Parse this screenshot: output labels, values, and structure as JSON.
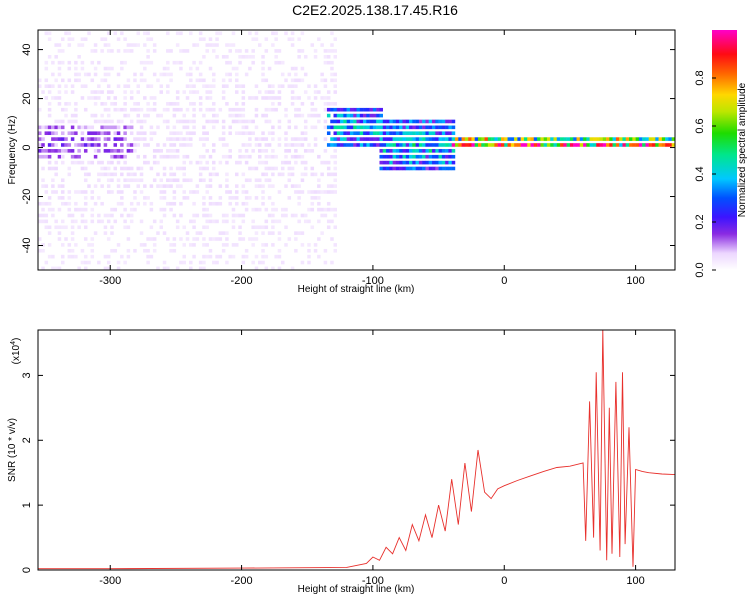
{
  "title": "C2E2.2025.138.17.45.R16",
  "chart_data": [
    {
      "type": "heatmap",
      "xlabel": "Height of straight line (km)",
      "ylabel": "Frequency (Hz)",
      "xlim": [
        -355,
        130
      ],
      "ylim": [
        -50,
        48
      ],
      "xticks": [
        -300,
        -200,
        -100,
        0,
        100
      ],
      "yticks": [
        -40,
        -20,
        0,
        20,
        40
      ],
      "colorbar": {
        "label": "Normalized spectral amplitude",
        "range": [
          0.0,
          1.0
        ],
        "ticks": [
          0.0,
          0.2,
          0.4,
          0.6,
          0.8
        ],
        "tick_labels": [
          "0.0",
          "0.2",
          "0.4",
          "0.6",
          "0.8"
        ],
        "colormap": "rainbow (white, violet, blue, cyan, green, yellow, orange, red, magenta)"
      },
      "regions": [
        {
          "x_range": [
            -355,
            -130
          ],
          "freq_range": [
            -50,
            48
          ],
          "amplitude": 0.05,
          "description": "broadband noise"
        },
        {
          "x_range": [
            -355,
            -285
          ],
          "freq_range": [
            -5,
            8
          ],
          "amplitude": 0.15
        },
        {
          "x_range": [
            -135,
            -95
          ],
          "freq_range": [
            0,
            15
          ],
          "amplitude": 0.4
        },
        {
          "x_range": [
            -95,
            -40
          ],
          "freq_range": [
            -10,
            10
          ],
          "amplitude": 0.4
        },
        {
          "x_range": [
            -40,
            130
          ],
          "freq_range": [
            -2,
            3
          ],
          "amplitude": 0.85,
          "description": "narrow line near 0 Hz"
        }
      ],
      "grid": false,
      "legend": "none"
    },
    {
      "type": "line",
      "xlabel": "Height of straight line (km)",
      "ylabel": "SNR (10 * v/v)",
      "multiplier_label": "(x10",
      "multiplier_exp": "4",
      "xlim": [
        -355,
        130
      ],
      "ylim": [
        0,
        3.7
      ],
      "xticks": [
        -300,
        -200,
        -100,
        0,
        100
      ],
      "yticks": [
        0,
        1,
        2,
        3
      ],
      "color": "#e8302c",
      "series": [
        {
          "x": [
            -355,
            -300,
            -200,
            -120,
            -105,
            -100,
            -95,
            -90,
            -85,
            -80,
            -75,
            -70,
            -65,
            -60,
            -55,
            -50,
            -45,
            -40,
            -35,
            -30,
            -25,
            -20,
            -15,
            -10,
            -5,
            0,
            10,
            20,
            30,
            40,
            50,
            60,
            62,
            65,
            68,
            70,
            73,
            75,
            78,
            80,
            82,
            85,
            88,
            90,
            92,
            95,
            98,
            100,
            105,
            110,
            120,
            130
          ],
          "y": [
            0.02,
            0.02,
            0.03,
            0.04,
            0.1,
            0.2,
            0.15,
            0.35,
            0.25,
            0.5,
            0.3,
            0.7,
            0.45,
            0.85,
            0.5,
            1.0,
            0.6,
            1.4,
            0.7,
            1.65,
            0.9,
            1.85,
            1.2,
            1.1,
            1.25,
            1.3,
            1.38,
            1.45,
            1.52,
            1.58,
            1.6,
            1.65,
            0.45,
            2.6,
            0.5,
            3.05,
            0.3,
            3.72,
            0.15,
            2.5,
            0.25,
            2.9,
            0.2,
            3.05,
            0.4,
            2.2,
            0.05,
            1.55,
            1.52,
            1.5,
            1.48,
            1.47
          ]
        }
      ],
      "grid": false,
      "legend": "none"
    }
  ]
}
